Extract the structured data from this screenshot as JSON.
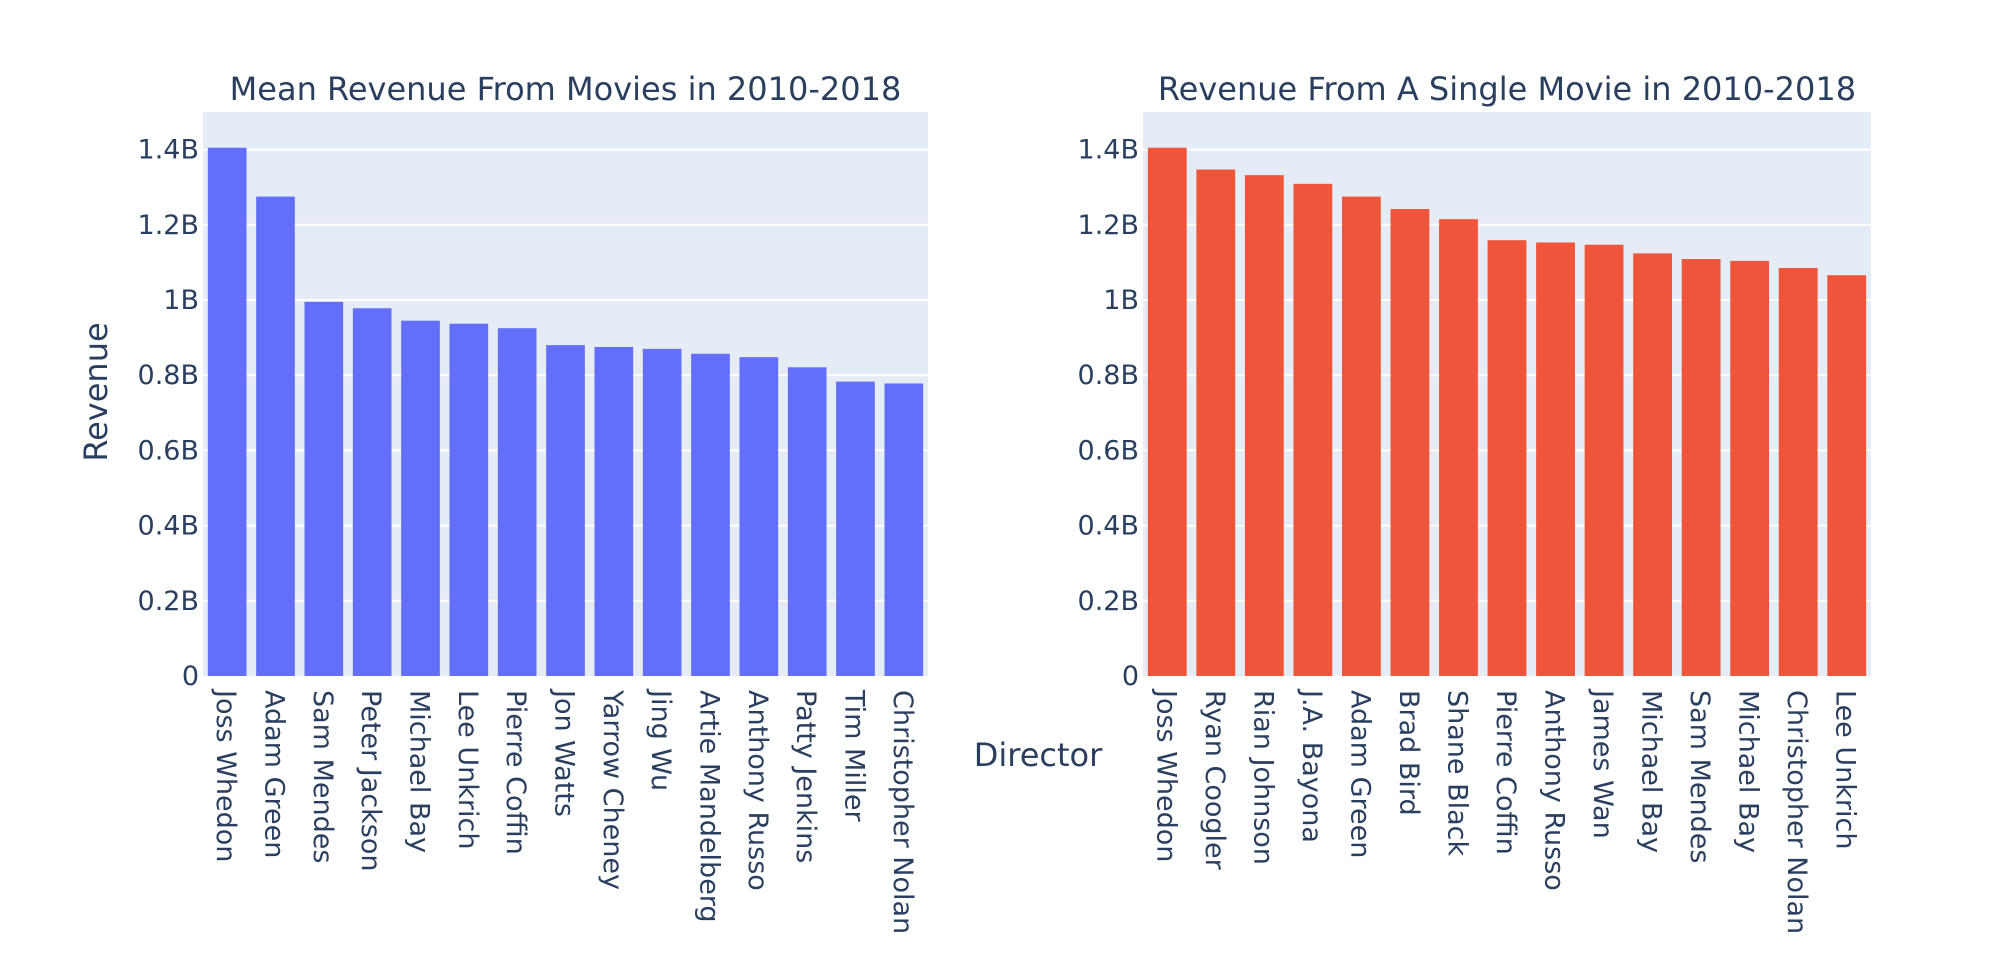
{
  "colors": {
    "background": "#ffffff",
    "plot_bg": "#e5ecf6",
    "grid": "#ffffff",
    "text": "#2a3f5f",
    "series_1": "#636efa",
    "series_2": "#ef553b"
  },
  "figure": {
    "shared_xlabel": "Director",
    "shared_ylabel": "Revenue"
  },
  "chart_data": [
    {
      "type": "bar",
      "title": "Mean Revenue From Movies in 2010-2018",
      "xlabel": "Director",
      "ylabel": "Revenue",
      "ylim": [
        0,
        1500000000
      ],
      "yticks": [
        0,
        200000000,
        400000000,
        600000000,
        800000000,
        1000000000,
        1200000000,
        1400000000
      ],
      "ytick_labels": [
        "0",
        "0.2B",
        "0.4B",
        "0.6B",
        "0.8B",
        "1B",
        "1.2B",
        "1.4B"
      ],
      "grid": true,
      "categories": [
        "Joss Whedon",
        "Adam Green",
        "Sam Mendes",
        "Peter Jackson",
        "Michael Bay",
        "Lee Unkrich",
        "Pierre Coffin",
        "Jon Watts",
        "Yarrow Cheney",
        "Jing Wu",
        "Artie Mandelberg",
        "Anthony Russo",
        "Patty Jenkins",
        "Tim Miller",
        "Christopher Nolan"
      ],
      "values": [
        1405000000,
        1275000000,
        995000000,
        978000000,
        945000000,
        937000000,
        925000000,
        880000000,
        875000000,
        870000000,
        857000000,
        848000000,
        821000000,
        783000000,
        778000000
      ],
      "color": "#636efa"
    },
    {
      "type": "bar",
      "title": "Revenue From A Single Movie in 2010-2018",
      "xlabel": "Director",
      "ylabel": "Revenue",
      "ylim": [
        0,
        1500000000
      ],
      "yticks": [
        0,
        200000000,
        400000000,
        600000000,
        800000000,
        1000000000,
        1200000000,
        1400000000
      ],
      "ytick_labels": [
        "0",
        "0.2B",
        "0.4B",
        "0.6B",
        "0.8B",
        "1B",
        "1.2B",
        "1.4B"
      ],
      "grid": true,
      "categories": [
        "Joss Whedon",
        "Ryan Coogler",
        "Rian Johnson",
        "J.A. Bayona",
        "Adam Green",
        "Brad Bird",
        "Shane Black",
        "Pierre Coffin",
        "Anthony Russo",
        "James Wan",
        "Michael Bay",
        "Sam Mendes",
        "Michael Bay",
        "Christopher Nolan",
        "Lee Unkrich"
      ],
      "values": [
        1405000000,
        1347000000,
        1332000000,
        1309000000,
        1275000000,
        1242000000,
        1215000000,
        1159000000,
        1153000000,
        1147000000,
        1124000000,
        1109000000,
        1104000000,
        1085000000,
        1066000000
      ],
      "color": "#ef553b"
    }
  ]
}
